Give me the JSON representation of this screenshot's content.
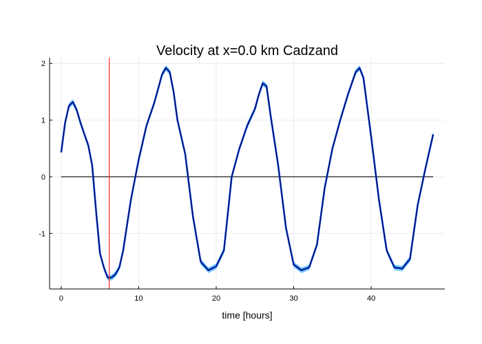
{
  "chart_data": {
    "type": "line",
    "title": "Velocity at x=0.0 km Cadzand",
    "xlabel": "time [hours]",
    "ylabel": "",
    "xlim": [
      -1.5,
      49.5
    ],
    "ylim": [
      -1.98,
      2.1
    ],
    "xticks": [
      0,
      10,
      20,
      30,
      40
    ],
    "yticks": [
      -1,
      0,
      1,
      2
    ],
    "grid": true,
    "legend": "none",
    "colors": {
      "series_line": "#0033dd",
      "uncertainty_band": "#55bbff",
      "mean_line": "#000000",
      "zero_line": "#000000",
      "marker_line": "#ff2222"
    },
    "series": [
      {
        "x": [
          0.0,
          0.5,
          1.0,
          1.5,
          2.0,
          2.5,
          3.0,
          3.5,
          4.0,
          4.5,
          5.0,
          5.5,
          6.0,
          6.5,
          7.0,
          7.5,
          8.0,
          8.5,
          9.0,
          10.0,
          11.0,
          12.0,
          12.5,
          13.0,
          13.5,
          14.0,
          14.5,
          15.0,
          16.0,
          17.0,
          18.0,
          19.0,
          20.0,
          21.0,
          22.0,
          23.0,
          24.0,
          25.0,
          25.5,
          26.0,
          26.5,
          27.0,
          28.0,
          29.0,
          30.0,
          31.0,
          32.0,
          33.0,
          34.0,
          35.0,
          36.0,
          37.0,
          38.0,
          38.5,
          39.0,
          40.0,
          41.0,
          42.0,
          43.0,
          44.0,
          45.0,
          46.0,
          47.0,
          48.0
        ],
        "y": [
          0.43,
          0.95,
          1.25,
          1.32,
          1.18,
          0.95,
          0.75,
          0.55,
          0.2,
          -0.6,
          -1.35,
          -1.6,
          -1.78,
          -1.78,
          -1.72,
          -1.6,
          -1.3,
          -0.85,
          -0.4,
          0.3,
          0.9,
          1.3,
          1.55,
          1.8,
          1.92,
          1.85,
          1.5,
          1.0,
          0.4,
          -0.7,
          -1.5,
          -1.65,
          -1.58,
          -1.3,
          0.0,
          0.5,
          0.9,
          1.2,
          1.45,
          1.65,
          1.6,
          1.1,
          0.2,
          -0.9,
          -1.55,
          -1.65,
          -1.6,
          -1.2,
          -0.2,
          0.5,
          1.0,
          1.45,
          1.85,
          1.92,
          1.75,
          0.7,
          -0.4,
          -1.3,
          -1.6,
          -1.62,
          -1.45,
          -0.5,
          0.15,
          0.75
        ],
        "band": 0.05
      }
    ],
    "marker_x": 6.2,
    "reference_y": 0
  }
}
